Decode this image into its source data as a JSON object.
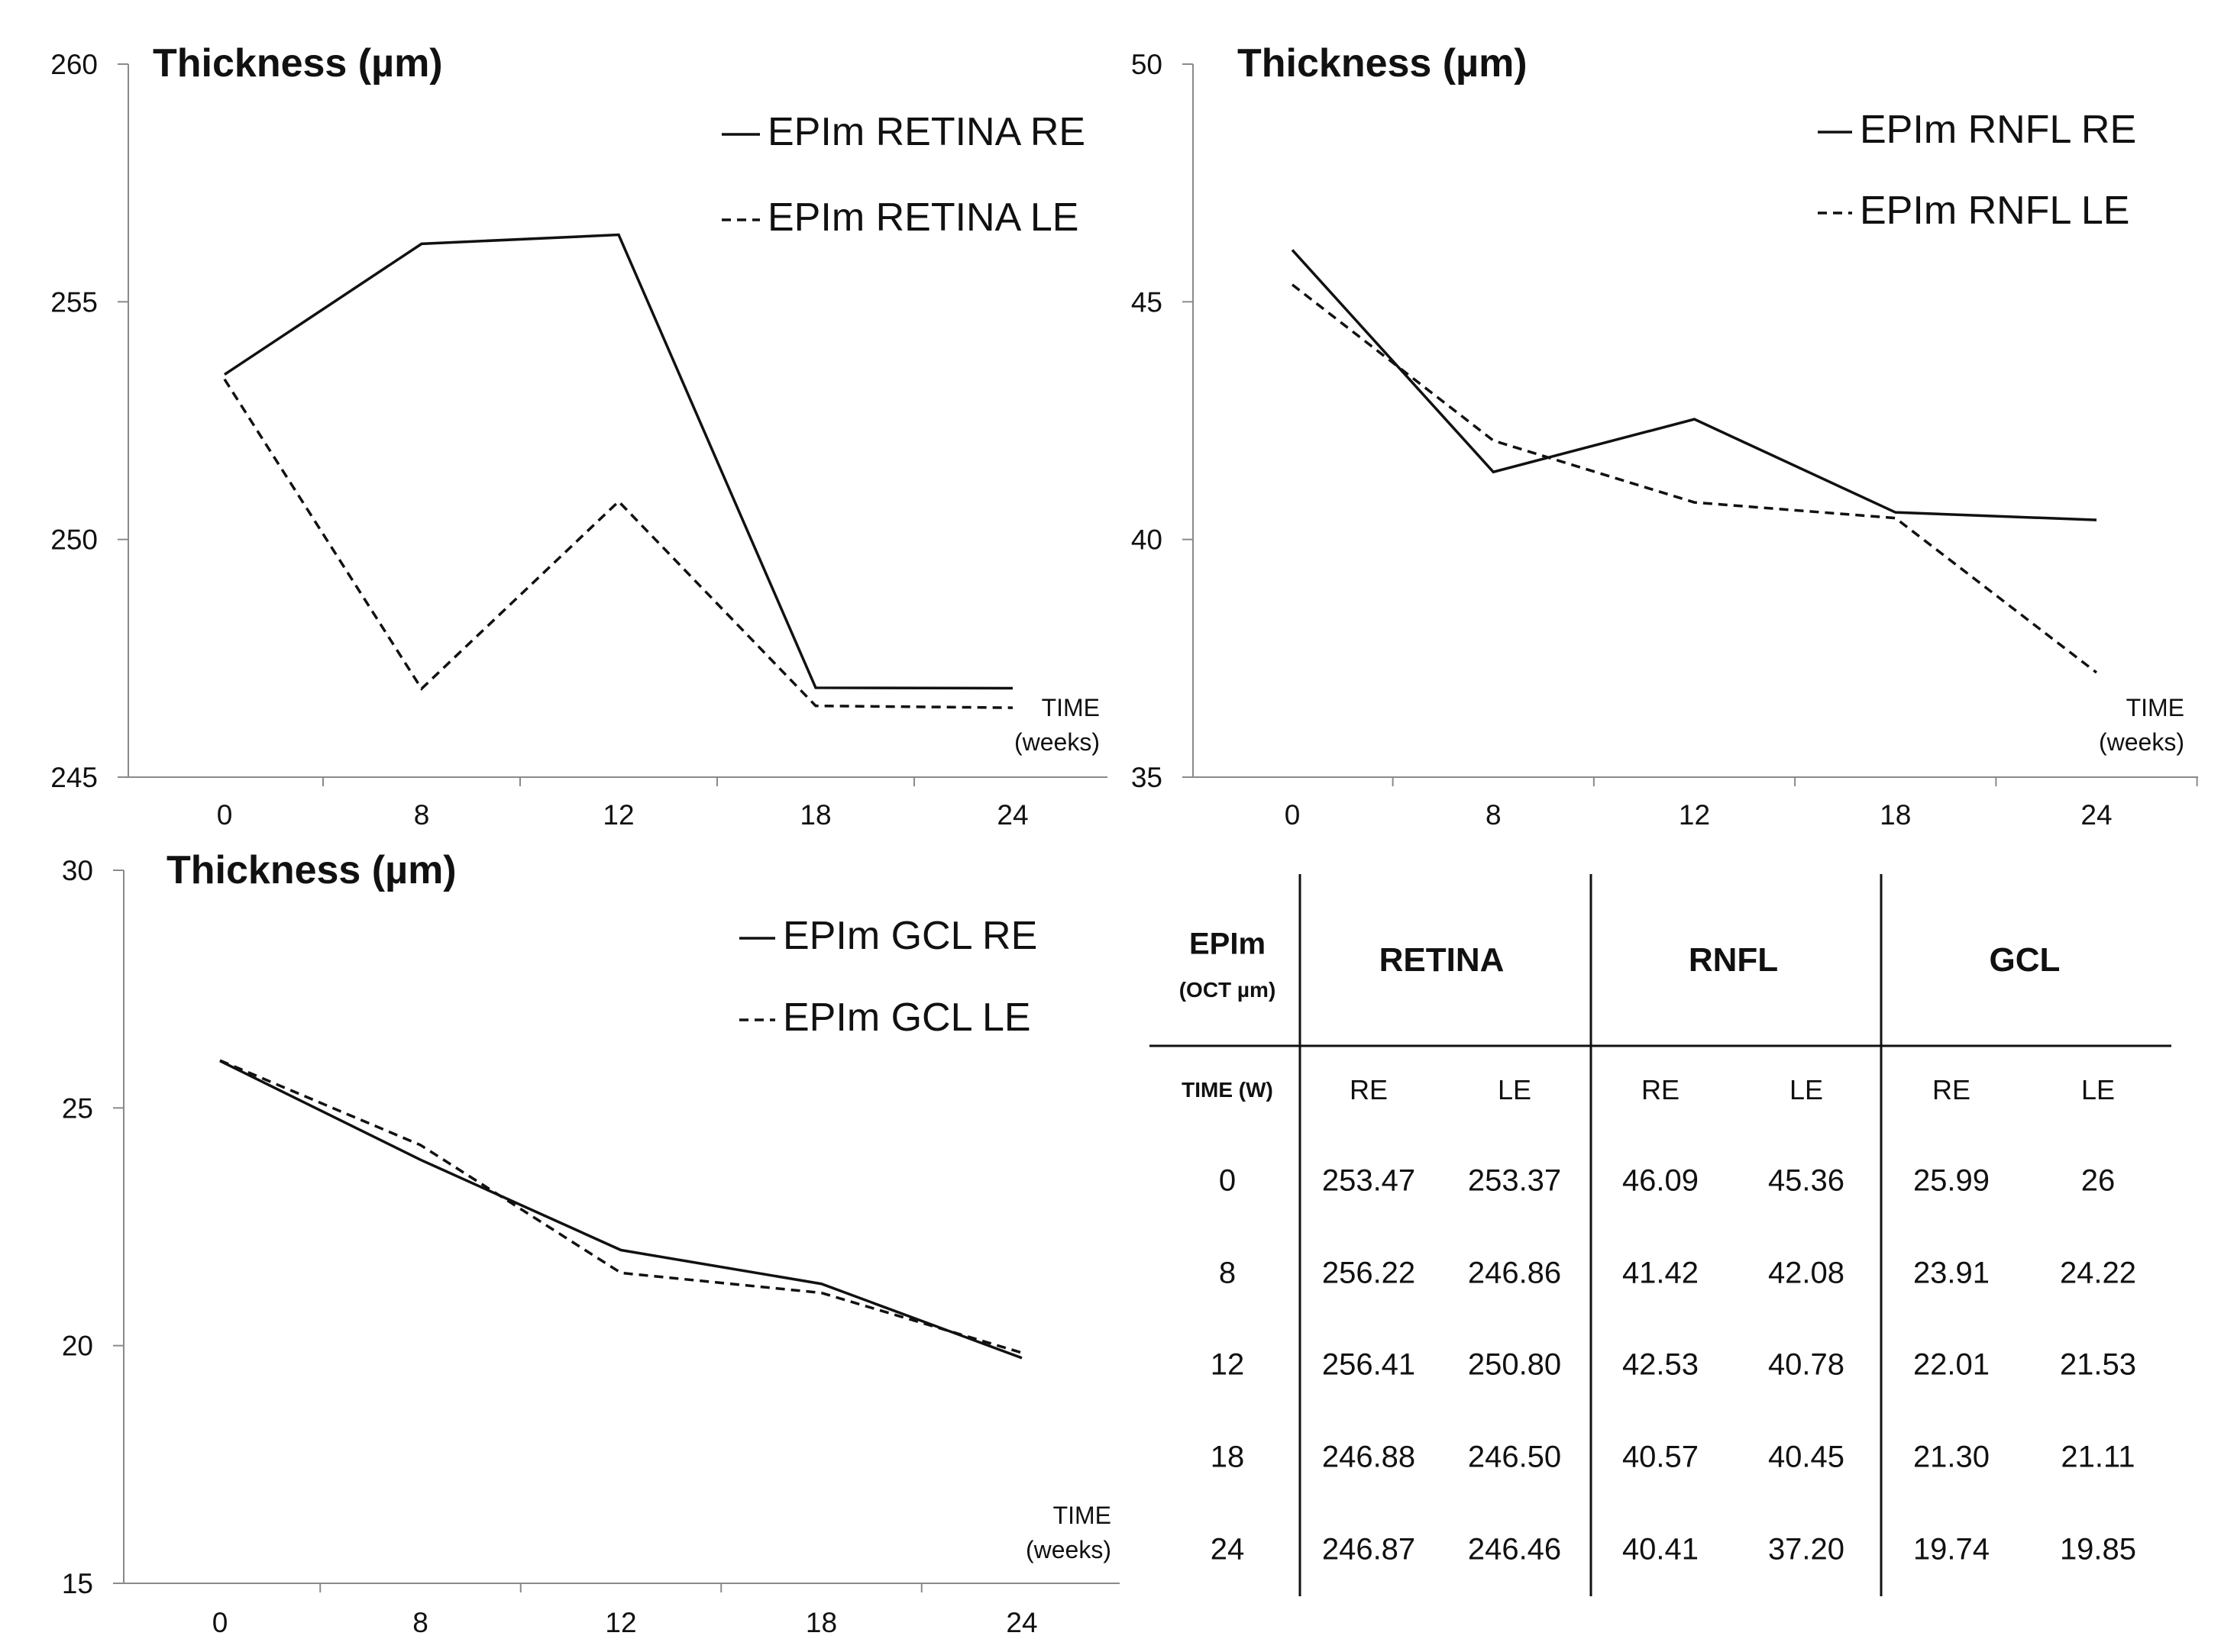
{
  "chart_data": [
    {
      "type": "line",
      "ylabel": "Thickness (µm)",
      "xlabel": "TIME\n(weeks)",
      "categories": [
        "0",
        "8",
        "12",
        "18",
        "24"
      ],
      "yticks": [
        "245",
        "250",
        "255",
        "260"
      ],
      "ylim": [
        245,
        260
      ],
      "grid": false,
      "legend_position": "top-right",
      "series": [
        {
          "name": "EPIm RETINA RE",
          "style": "solid",
          "values": [
            253.47,
            256.22,
            256.41,
            246.88,
            246.87
          ]
        },
        {
          "name": "EPIm RETINA LE",
          "style": "dashed",
          "values": [
            253.37,
            246.86,
            250.8,
            246.5,
            246.46
          ]
        }
      ]
    },
    {
      "type": "line",
      "ylabel": "Thickness (µm)",
      "xlabel": "TIME\n(weeks)",
      "categories": [
        "0",
        "8",
        "12",
        "18",
        "24"
      ],
      "yticks": [
        "35",
        "40",
        "45",
        "50"
      ],
      "ylim": [
        35,
        50
      ],
      "grid": false,
      "legend_position": "top-right",
      "series": [
        {
          "name": "EPIm RNFL RE",
          "style": "solid",
          "values": [
            46.09,
            41.42,
            42.53,
            40.57,
            40.41
          ]
        },
        {
          "name": "EPIm RNFL LE",
          "style": "dashed",
          "values": [
            45.36,
            42.08,
            40.78,
            40.45,
            37.2
          ]
        }
      ]
    },
    {
      "type": "line",
      "ylabel": "Thickness (µm)",
      "xlabel": "TIME\n(weeks)",
      "categories": [
        "0",
        "8",
        "12",
        "18",
        "24"
      ],
      "yticks": [
        "15",
        "20",
        "25",
        "30"
      ],
      "ylim": [
        15,
        30
      ],
      "grid": false,
      "legend_position": "top-right",
      "series": [
        {
          "name": "EPIm GCL RE",
          "style": "solid",
          "values": [
            25.99,
            23.91,
            22.01,
            21.3,
            19.74
          ]
        },
        {
          "name": "EPIm GCL LE",
          "style": "dashed",
          "values": [
            26,
            24.22,
            21.53,
            21.11,
            19.85
          ]
        }
      ]
    },
    {
      "type": "table",
      "corner_title": "EPIm",
      "corner_unit": "(OCT µm)",
      "time_header": "TIME (W)",
      "groups": [
        "RETINA",
        "RNFL",
        "GCL"
      ],
      "subheaders": [
        "RE",
        "LE",
        "RE",
        "LE",
        "RE",
        "LE"
      ],
      "rows": [
        {
          "time": "0",
          "values": [
            "253.47",
            "253.37",
            "46.09",
            "45.36",
            "25.99",
            "26"
          ]
        },
        {
          "time": "8",
          "values": [
            "256.22",
            "246.86",
            "41.42",
            "42.08",
            "23.91",
            "24.22"
          ]
        },
        {
          "time": "12",
          "values": [
            "256.41",
            "250.80",
            "42.53",
            "40.78",
            "22.01",
            "21.53"
          ]
        },
        {
          "time": "18",
          "values": [
            "246.88",
            "246.50",
            "40.57",
            "40.45",
            "21.30",
            "21.11"
          ]
        },
        {
          "time": "24",
          "values": [
            "246.87",
            "246.46",
            "40.41",
            "37.20",
            "19.74",
            "19.85"
          ]
        }
      ]
    }
  ]
}
